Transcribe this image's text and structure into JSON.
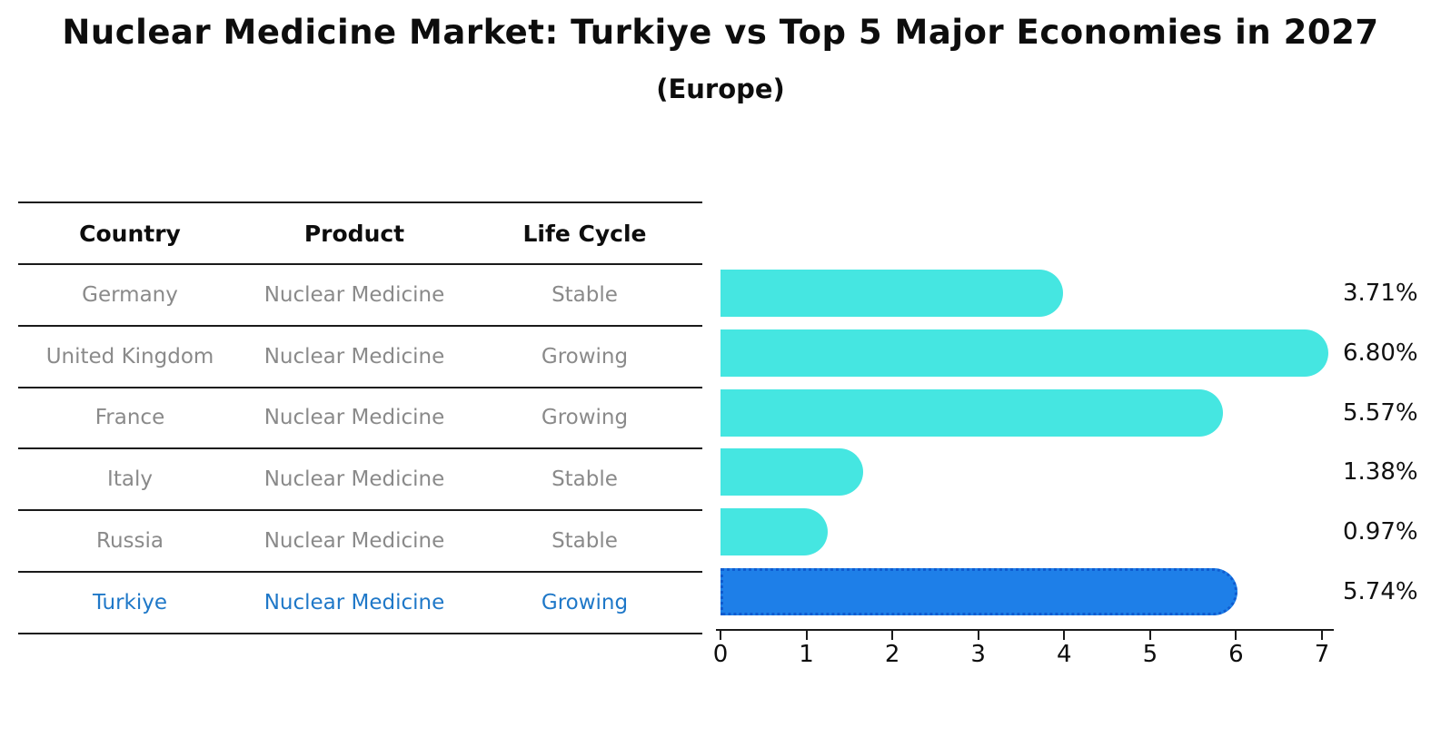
{
  "header": {
    "title": "Nuclear Medicine Market: Turkiye vs Top 5 Major Economies in 2027",
    "subtitle": "(Europe)"
  },
  "table": {
    "columns": [
      "Country",
      "Product",
      "Life Cycle"
    ]
  },
  "chart_data": {
    "type": "bar",
    "orientation": "horizontal",
    "title": "Nuclear Medicine Market: Turkiye vs Top 5 Major Economies in 2027",
    "subtitle": "(Europe)",
    "xlim": [
      0,
      7
    ],
    "x_ticks": [
      0,
      1,
      2,
      3,
      4,
      5,
      6,
      7
    ],
    "grid": false,
    "legend": "none",
    "categories": [
      "Germany",
      "United Kingdom",
      "France",
      "Italy",
      "Russia",
      "Turkiye"
    ],
    "values": [
      3.71,
      6.8,
      5.57,
      1.38,
      0.97,
      5.74
    ],
    "rows": [
      {
        "country": "Germany",
        "product": "Nuclear Medicine",
        "life_cycle": "Stable",
        "value": 3.71,
        "label": "3.71%",
        "highlight": false
      },
      {
        "country": "United Kingdom",
        "product": "Nuclear Medicine",
        "life_cycle": "Growing",
        "value": 6.8,
        "label": "6.80%",
        "highlight": false
      },
      {
        "country": "France",
        "product": "Nuclear Medicine",
        "life_cycle": "Growing",
        "value": 5.57,
        "label": "5.57%",
        "highlight": false
      },
      {
        "country": "Italy",
        "product": "Nuclear Medicine",
        "life_cycle": "Stable",
        "value": 1.38,
        "label": "1.38%",
        "highlight": false
      },
      {
        "country": "Russia",
        "product": "Nuclear Medicine",
        "life_cycle": "Stable",
        "value": 0.97,
        "label": "0.97%",
        "highlight": false
      },
      {
        "country": "Turkiye",
        "product": "Nuclear Medicine",
        "life_cycle": "Growing",
        "value": 5.74,
        "label": "5.74%",
        "highlight": true
      }
    ],
    "colors": {
      "bar": "#45e6e1",
      "highlight_bar": "#1e7fe8",
      "highlight_border": "#0f5cd0",
      "row_text": "#8a8a8a",
      "highlight_text": "#1f78c8",
      "value_text": "#111111",
      "line": "#1a1a1a"
    }
  }
}
